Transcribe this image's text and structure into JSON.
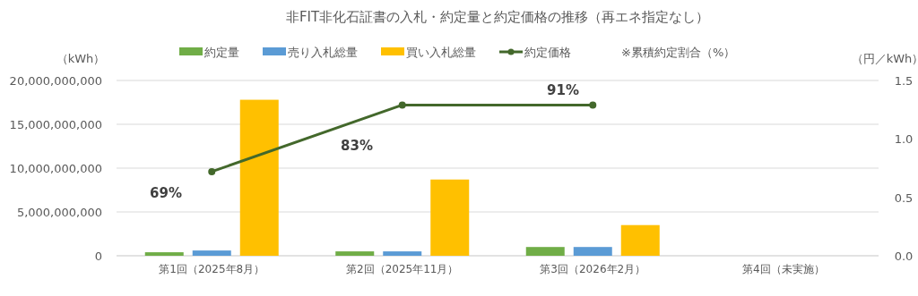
{
  "chart_data": {
    "type": "bar",
    "title": "非FIT非化石証書の入札・約定量と約定価格の推移（再エネ指定なし）",
    "ylabel": "（kWh）",
    "y2label": "（円／kWh）",
    "categories": [
      "第1回（2025年8月）",
      "第2回（2025年11月）",
      "第3回（2026年2月）",
      "第4回（未実施）"
    ],
    "series": [
      {
        "name": "約定量",
        "color": "#70ad47",
        "values": [
          400000000,
          500000000,
          1000000000,
          null
        ]
      },
      {
        "name": "売り入札総量",
        "color": "#5b9bd5",
        "values": [
          600000000,
          500000000,
          1000000000,
          null
        ]
      },
      {
        "name": "買い入札総量",
        "color": "#ffc000",
        "values": [
          17800000000,
          8700000000,
          3500000000,
          null
        ]
      },
      {
        "name": "約定価格",
        "type": "line",
        "axis": "y2",
        "color": "#43682b",
        "marker": "circle",
        "values": [
          0.72,
          1.29,
          1.29,
          null
        ]
      }
    ],
    "ylim": [
      0,
      20000000000
    ],
    "yticks": [
      {
        "value": 0,
        "label": "0"
      },
      {
        "value": 5000000000,
        "label": "5,000,000,000"
      },
      {
        "value": 10000000000,
        "label": "10,000,000,000"
      },
      {
        "value": 15000000000,
        "label": "15,000,000,000"
      },
      {
        "value": 20000000000,
        "label": "20,000,000,000"
      }
    ],
    "y2lim": [
      0,
      1.5
    ],
    "y2ticks": [
      {
        "value": 0,
        "label": "0.0"
      },
      {
        "value": 0.5,
        "label": "0.5"
      },
      {
        "value": 1,
        "label": "1.0"
      },
      {
        "value": 1.5,
        "label": "1.5"
      }
    ],
    "grid": "y",
    "legend": "top",
    "annotations": [
      "※累積約定割合（%）",
      "69%",
      "83%",
      "91%"
    ]
  }
}
